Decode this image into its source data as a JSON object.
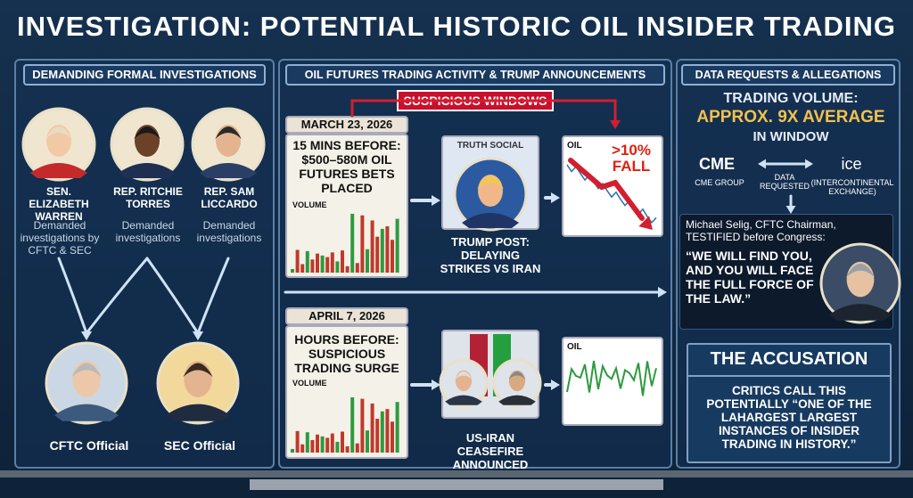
{
  "title": "INVESTIGATION: POTENTIAL HISTORIC OIL INSIDER TRADING",
  "left": {
    "header": "DEMANDING FORMAL INVESTIGATIONS",
    "people": [
      {
        "name": "SEN. ELIZABETH WARREN",
        "note": "Demanded investigations by CFTC & SEC"
      },
      {
        "name": "REP. RITCHIE TORRES",
        "note": "Demanded investigations"
      },
      {
        "name": "REP. SAM LICCARDO",
        "note": "Demanded investigations"
      }
    ],
    "officials": [
      "CFTC Official",
      "SEC Official"
    ]
  },
  "middle": {
    "header": "OIL FUTURES TRADING ACTIVITY & TRUMP ANNOUNCEMENTS",
    "windows": "SUSPICIOUS WINDOWS",
    "events": [
      {
        "date": "MARCH 23, 2026",
        "text": "15 MINS BEFORE: $500–580M OIL FUTURES BETS PLACED",
        "volume": "VOLUME",
        "badge": "TRUTH SOCIAL",
        "caption": "TRUMP POST: DELAYING STRIKES VS IRAN",
        "oil": "OIL",
        "oil_note": ">10% FALL"
      },
      {
        "date": "APRIL 7, 2026",
        "text": "HOURS BEFORE: SUSPICIOUS TRADING SURGE",
        "volume": "VOLUME",
        "caption": "US-IRAN CEASEFIRE ANNOUNCED",
        "oil": "OIL"
      }
    ]
  },
  "right": {
    "header": "DATA REQUESTS & ALLEGATIONS",
    "volume_line1": "TRADING VOLUME:",
    "volume_line2": "APPROX. 9X AVERAGE",
    "volume_line3": "IN WINDOW",
    "cme_logo": "CME",
    "cme_name": "CME GROUP",
    "requested": "DATA REQUESTED",
    "ice_logo": "ICE",
    "ice_name": "(INTERCONTINENTAL EXCHANGE)",
    "testimony": "Michael Selig, CFTC Chairman, TESTIFIED before Congress:",
    "quote": "“WE WILL FIND YOU, AND YOU WILL FACE THE FULL FORCE OF THE LAW.”",
    "accusation_title": "THE ACCUSATION",
    "accusation": "CRITICS CALL THIS POTENTIALLY “ONE OF THE LAHARGEST LARGEST INSTANCES OF INSIDER TRADING IN HISTORY.”"
  }
}
